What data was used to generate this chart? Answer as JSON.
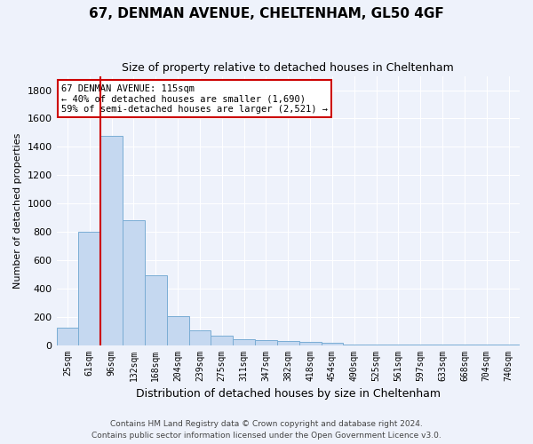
{
  "title1": "67, DENMAN AVENUE, CHELTENHAM, GL50 4GF",
  "title2": "Size of property relative to detached houses in Cheltenham",
  "xlabel": "Distribution of detached houses by size in Cheltenham",
  "ylabel": "Number of detached properties",
  "footer1": "Contains HM Land Registry data © Crown copyright and database right 2024.",
  "footer2": "Contains public sector information licensed under the Open Government Licence v3.0.",
  "categories": [
    "25sqm",
    "61sqm",
    "96sqm",
    "132sqm",
    "168sqm",
    "204sqm",
    "239sqm",
    "275sqm",
    "311sqm",
    "347sqm",
    "382sqm",
    "418sqm",
    "454sqm",
    "490sqm",
    "525sqm",
    "561sqm",
    "597sqm",
    "633sqm",
    "668sqm",
    "704sqm",
    "740sqm"
  ],
  "values": [
    125,
    800,
    1480,
    880,
    490,
    205,
    105,
    65,
    40,
    35,
    30,
    20,
    15,
    5,
    3,
    2,
    1,
    1,
    1,
    1,
    1
  ],
  "bar_color": "#c5d8f0",
  "bar_edge_color": "#7aadd4",
  "red_line_x": 1.5,
  "red_line_label": "67 DENMAN AVENUE: 115sqm",
  "annotation_line1": "← 40% of detached houses are smaller (1,690)",
  "annotation_line2": "59% of semi-detached houses are larger (2,521) →",
  "ylim": [
    0,
    1900
  ],
  "yticks": [
    0,
    200,
    400,
    600,
    800,
    1000,
    1200,
    1400,
    1600,
    1800
  ],
  "background_color": "#eef2fb",
  "grid_color": "#ffffff",
  "annotation_box_facecolor": "#ffffff",
  "annotation_box_edgecolor": "#cc0000",
  "red_line_color": "#cc0000"
}
